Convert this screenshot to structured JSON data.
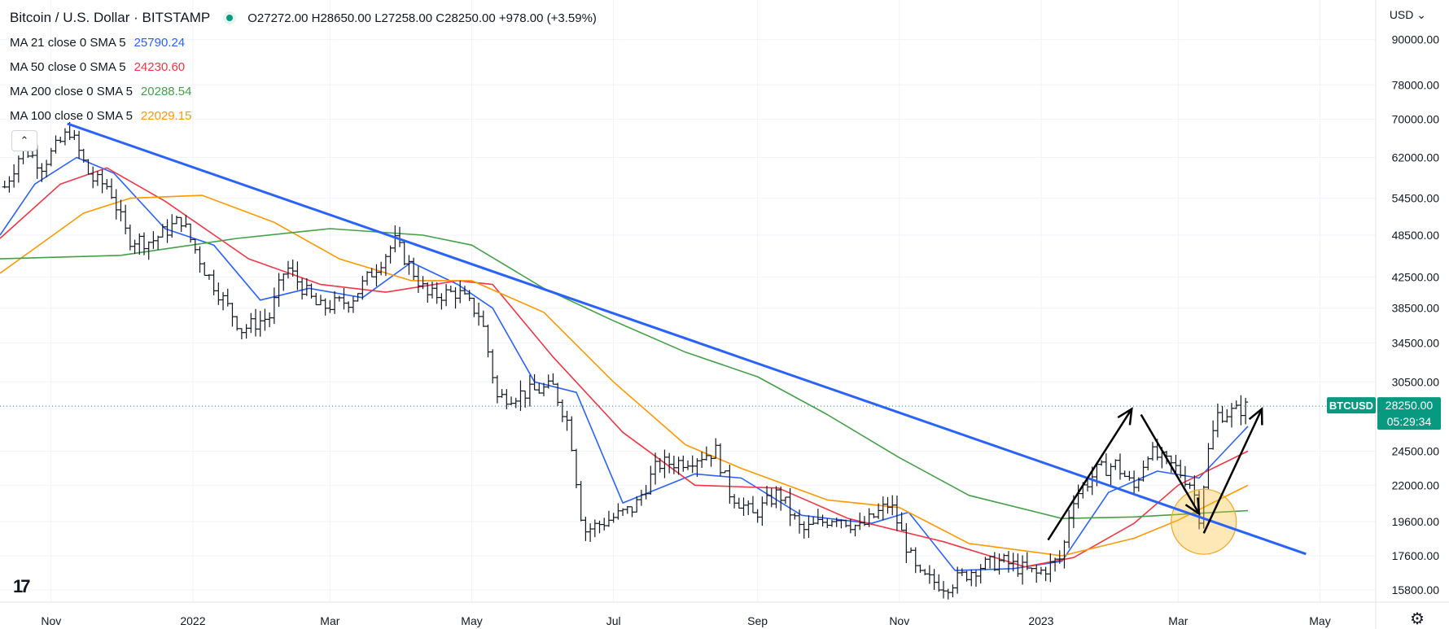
{
  "header": {
    "title": "Bitcoin / U.S. Dollar · BITSTAMP",
    "ohlc": "O27272.00 H28650.00 L27258.00 C28250.00 +978.00 (+3.59%)",
    "currency": "USD"
  },
  "indicators": [
    {
      "label": "MA 21 close 0 SMA 5",
      "value": "25790.24",
      "color": "#2962ff"
    },
    {
      "label": "MA 50 close 0 SMA 5",
      "value": "24230.60",
      "color": "#f23645"
    },
    {
      "label": "MA 200 close 0 SMA 5",
      "value": "20288.54",
      "color": "#43a047"
    },
    {
      "label": "MA 100 close 0 SMA 5",
      "value": "22029.15",
      "color": "#ff9800"
    }
  ],
  "price_label": {
    "symbol": "BTCUSD",
    "price": "28250.00",
    "countdown": "05:29:34",
    "color": "#089981"
  },
  "chart_data": {
    "type": "line",
    "scale": "log",
    "y_ticks": [
      90000,
      78000,
      70000,
      62000,
      54500,
      48500,
      42500,
      38500,
      34500,
      30500,
      24500,
      22000,
      19600,
      17600,
      15800
    ],
    "y_tick_labels": [
      "90000.00",
      "78000.00",
      "70000.00",
      "62000.00",
      "54500.00",
      "48500.00",
      "42500.00",
      "38500.00",
      "34500.00",
      "30500.00",
      "24500.00",
      "22000.00",
      "19600.00",
      "17600.00",
      "15800.00"
    ],
    "x_labels": [
      {
        "date": "2021-11-01",
        "label": "Nov"
      },
      {
        "date": "2022-01-01",
        "label": "2022"
      },
      {
        "date": "2022-03-01",
        "label": "Mar"
      },
      {
        "date": "2022-05-01",
        "label": "May"
      },
      {
        "date": "2022-07-01",
        "label": "Jul"
      },
      {
        "date": "2022-09-01",
        "label": "Sep"
      },
      {
        "date": "2022-11-01",
        "label": "Nov"
      },
      {
        "date": "2023-01-01",
        "label": "2023"
      },
      {
        "date": "2023-03-01",
        "label": "Mar"
      },
      {
        "date": "2023-05-01",
        "label": "May"
      }
    ],
    "x_range": [
      "2021-10-10",
      "2023-05-25"
    ],
    "y_range": [
      15200,
      102000
    ],
    "last_price": 28250,
    "price": [
      [
        "2021-10-12",
        56500
      ],
      [
        "2021-10-20",
        64000
      ],
      [
        "2021-10-28",
        60500
      ],
      [
        "2021-11-09",
        67500
      ],
      [
        "2021-11-18",
        58000
      ],
      [
        "2021-11-26",
        56500
      ],
      [
        "2021-12-04",
        48000
      ],
      [
        "2021-12-14",
        47500
      ],
      [
        "2021-12-27",
        51000
      ],
      [
        "2022-01-06",
        43500
      ],
      [
        "2022-01-22",
        36000
      ],
      [
        "2022-02-03",
        37500
      ],
      [
        "2022-02-10",
        44000
      ],
      [
        "2022-02-24",
        38500
      ],
      [
        "2022-03-10",
        39500
      ],
      [
        "2022-03-29",
        47500
      ],
      [
        "2022-04-12",
        40000
      ],
      [
        "2022-04-25",
        40500
      ],
      [
        "2022-05-05",
        37500
      ],
      [
        "2022-05-12",
        29000
      ],
      [
        "2022-05-25",
        29500
      ],
      [
        "2022-06-05",
        30000
      ],
      [
        "2022-06-12",
        26500
      ],
      [
        "2022-06-18",
        19000
      ],
      [
        "2022-06-30",
        19800
      ],
      [
        "2022-07-10",
        20500
      ],
      [
        "2022-07-20",
        23500
      ],
      [
        "2022-07-30",
        23700
      ],
      [
        "2022-08-14",
        24500
      ],
      [
        "2022-08-20",
        21500
      ],
      [
        "2022-08-30",
        20000
      ],
      [
        "2022-09-10",
        21500
      ],
      [
        "2022-09-20",
        19000
      ],
      [
        "2022-10-05",
        20000
      ],
      [
        "2022-10-15",
        19200
      ],
      [
        "2022-10-28",
        20800
      ],
      [
        "2022-11-09",
        16500
      ],
      [
        "2022-11-21",
        16000
      ],
      [
        "2022-12-05",
        17000
      ],
      [
        "2022-12-15",
        17300
      ],
      [
        "2022-12-30",
        16600
      ],
      [
        "2023-01-10",
        17500
      ],
      [
        "2023-01-14",
        21000
      ],
      [
        "2023-01-25",
        23000
      ],
      [
        "2023-02-02",
        23500
      ],
      [
        "2023-02-10",
        21800
      ],
      [
        "2023-02-16",
        24500
      ],
      [
        "2023-02-28",
        23200
      ],
      [
        "2023-03-07",
        22000
      ],
      [
        "2023-03-10",
        20000
      ],
      [
        "2023-03-14",
        24500
      ],
      [
        "2023-03-18",
        27500
      ],
      [
        "2023-03-26",
        27800
      ],
      [
        "2023-03-31",
        28250
      ]
    ],
    "series": [
      {
        "name": "MA 21",
        "color": "#2962ff",
        "points": [
          [
            "2021-10-10",
            48500
          ],
          [
            "2021-10-25",
            57000
          ],
          [
            "2021-11-12",
            62000
          ],
          [
            "2021-11-28",
            59000
          ],
          [
            "2021-12-20",
            49500
          ],
          [
            "2022-01-10",
            47000
          ],
          [
            "2022-01-30",
            39500
          ],
          [
            "2022-02-20",
            41000
          ],
          [
            "2022-03-15",
            39800
          ],
          [
            "2022-04-05",
            44500
          ],
          [
            "2022-04-25",
            41500
          ],
          [
            "2022-05-10",
            38500
          ],
          [
            "2022-05-28",
            30500
          ],
          [
            "2022-06-15",
            29500
          ],
          [
            "2022-07-05",
            20800
          ],
          [
            "2022-08-05",
            22800
          ],
          [
            "2022-08-25",
            22500
          ],
          [
            "2022-09-20",
            20000
          ],
          [
            "2022-10-20",
            19500
          ],
          [
            "2022-11-05",
            20200
          ],
          [
            "2022-11-25",
            16800
          ],
          [
            "2022-12-20",
            16900
          ],
          [
            "2023-01-10",
            17300
          ],
          [
            "2023-01-30",
            21500
          ],
          [
            "2023-02-20",
            23000
          ],
          [
            "2023-03-10",
            22500
          ],
          [
            "2023-03-31",
            26500
          ]
        ]
      },
      {
        "name": "MA 50",
        "color": "#f23645",
        "points": [
          [
            "2021-10-10",
            48000
          ],
          [
            "2021-11-05",
            57000
          ],
          [
            "2021-11-25",
            60000
          ],
          [
            "2021-12-20",
            54000
          ],
          [
            "2022-01-25",
            45000
          ],
          [
            "2022-02-25",
            41500
          ],
          [
            "2022-03-25",
            40500
          ],
          [
            "2022-04-25",
            42000
          ],
          [
            "2022-05-10",
            41500
          ],
          [
            "2022-06-05",
            33000
          ],
          [
            "2022-07-05",
            26000
          ],
          [
            "2022-08-05",
            22000
          ],
          [
            "2022-09-10",
            21800
          ],
          [
            "2022-10-10",
            19800
          ],
          [
            "2022-11-20",
            18400
          ],
          [
            "2022-12-25",
            17000
          ],
          [
            "2023-01-15",
            17500
          ],
          [
            "2023-02-10",
            19500
          ],
          [
            "2023-03-01",
            22000
          ],
          [
            "2023-03-31",
            24500
          ]
        ]
      },
      {
        "name": "MA 100",
        "color": "#ff9800",
        "points": [
          [
            "2021-10-10",
            43000
          ],
          [
            "2021-11-15",
            52000
          ],
          [
            "2021-12-05",
            54500
          ],
          [
            "2022-01-05",
            55000
          ],
          [
            "2022-02-05",
            50500
          ],
          [
            "2022-03-05",
            45000
          ],
          [
            "2022-04-05",
            42000
          ],
          [
            "2022-05-01",
            42000
          ],
          [
            "2022-06-01",
            38000
          ],
          [
            "2022-07-01",
            30500
          ],
          [
            "2022-08-01",
            25000
          ],
          [
            "2022-08-25",
            23200
          ],
          [
            "2022-10-01",
            21000
          ],
          [
            "2022-11-01",
            20500
          ],
          [
            "2022-12-01",
            18300
          ],
          [
            "2023-01-10",
            17600
          ],
          [
            "2023-02-10",
            18600
          ],
          [
            "2023-03-01",
            19700
          ],
          [
            "2023-03-31",
            22000
          ]
        ]
      },
      {
        "name": "MA 200",
        "color": "#43a047",
        "points": [
          [
            "2021-10-10",
            45000
          ],
          [
            "2021-12-01",
            45500
          ],
          [
            "2022-01-20",
            48000
          ],
          [
            "2022-03-01",
            49500
          ],
          [
            "2022-04-10",
            48500
          ],
          [
            "2022-05-01",
            47000
          ],
          [
            "2022-06-01",
            41000
          ],
          [
            "2022-07-01",
            37000
          ],
          [
            "2022-08-01",
            33500
          ],
          [
            "2022-09-01",
            31000
          ],
          [
            "2022-10-01",
            27500
          ],
          [
            "2022-11-01",
            24000
          ],
          [
            "2022-12-01",
            21300
          ],
          [
            "2023-01-10",
            19800
          ],
          [
            "2023-02-10",
            19900
          ],
          [
            "2023-03-31",
            20300
          ]
        ]
      }
    ],
    "annotations": {
      "trendline": {
        "color": "#2962ff",
        "from": [
          "2021-11-08",
          69000
        ],
        "to": [
          "2023-04-25",
          17700
        ]
      },
      "arrows": [
        {
          "from": [
            "2023-01-04",
            18500
          ],
          "to": [
            "2023-02-09",
            28000
          ]
        },
        {
          "from": [
            "2023-02-13",
            27500
          ],
          "to": [
            "2023-03-10",
            20100
          ]
        },
        {
          "from": [
            "2023-03-12",
            18900
          ],
          "to": [
            "2023-04-06",
            28000
          ]
        }
      ],
      "circle": {
        "center": [
          "2023-03-12",
          19600
        ],
        "color": "#fbc02d"
      }
    }
  }
}
